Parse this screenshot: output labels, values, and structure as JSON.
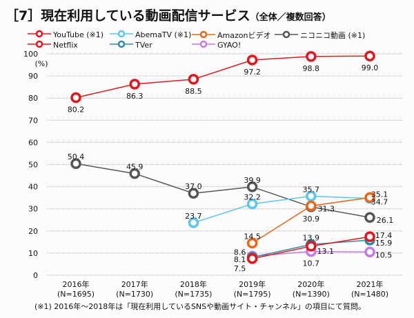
{
  "title": "［7］現在利用している動画配信サービス",
  "subtitle": "（全体／複数回答）",
  "footnote": "(※1) 2016年～2018年は「現在利用しているSNSや動画サイト・チャンネル」の項目にて質問。",
  "chart_data": {
    "type": "line",
    "title": "［7］現在利用している動画配信サービス（全体／複数回答）",
    "ylabel": "(%)",
    "xlabel": "",
    "ylim": [
      0,
      100
    ],
    "yticks": [
      0,
      10,
      20,
      30,
      40,
      50,
      60,
      70,
      80,
      90,
      100
    ],
    "grid": true,
    "legend_position": "top",
    "categories": [
      "2016年",
      "2017年",
      "2018年",
      "2019年",
      "2020年",
      "2021年"
    ],
    "category_sublabels": [
      "(N=1695)",
      "(N=1730)",
      "(N=1735)",
      "(N=1795)",
      "(N=1390)",
      "(N=1480)"
    ],
    "series": [
      {
        "name": "YouTube (※1)",
        "color": "#e8141b",
        "values": [
          80.2,
          86.3,
          88.5,
          97.2,
          98.8,
          99.0
        ]
      },
      {
        "name": "AbemaTV (※1)",
        "color": "#5bc5ef",
        "values": [
          null,
          null,
          23.7,
          32.2,
          35.7,
          34.7
        ]
      },
      {
        "name": "Amazonビデオ",
        "color": "#f06414",
        "values": [
          null,
          null,
          null,
          14.5,
          31.3,
          35.1
        ]
      },
      {
        "name": "ニコニコ動画 (※1)",
        "color": "#555555",
        "values": [
          50.4,
          45.9,
          37.0,
          39.9,
          30.9,
          26.1
        ]
      },
      {
        "name": "Netflix",
        "color": "#e8141b",
        "values": [
          null,
          null,
          null,
          7.5,
          13.1,
          17.4
        ]
      },
      {
        "name": "TVer",
        "color": "#2a8aa6",
        "values": [
          null,
          null,
          null,
          8.1,
          13.9,
          15.9
        ]
      },
      {
        "name": "GYAO!",
        "color": "#c878e6",
        "values": [
          null,
          null,
          null,
          8.6,
          10.7,
          10.5
        ]
      }
    ]
  }
}
